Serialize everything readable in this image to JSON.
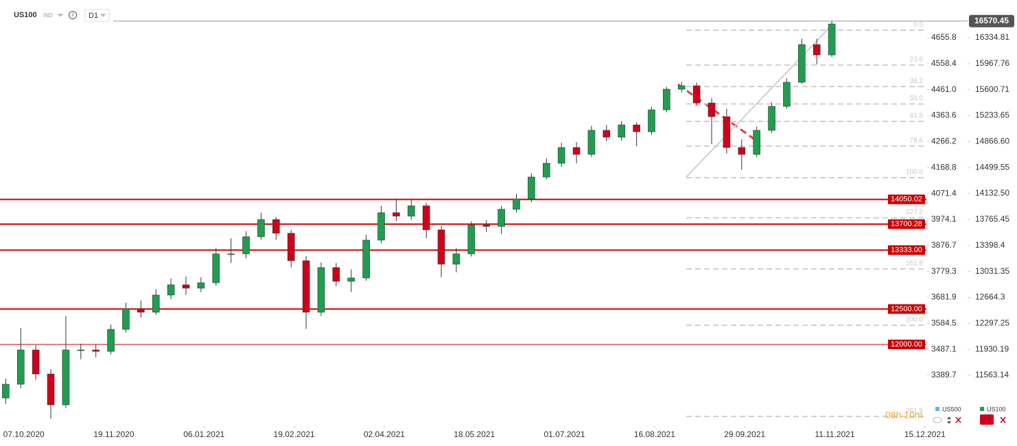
{
  "chart_data": {
    "type": "candlestick",
    "symbol": "US100",
    "market": "IND",
    "interval": "D1",
    "countdown": "08h 10m",
    "last_price": {
      "value": 16570.45,
      "label": "16570.45"
    },
    "x": [
      -6,
      -1,
      4,
      9,
      14,
      19,
      24,
      29,
      34,
      39,
      44,
      49,
      54,
      59,
      64,
      69,
      74,
      79,
      84,
      89,
      94,
      99,
      104,
      109,
      114,
      119,
      124,
      129,
      134,
      139,
      144,
      149,
      154,
      159,
      164,
      169,
      174,
      179,
      184,
      189,
      194,
      199,
      204,
      209,
      214,
      219,
      224,
      229,
      234,
      239,
      244,
      249,
      254,
      259,
      264,
      269
    ],
    "series": [
      {
        "name": "US100",
        "color_up": "#1f9e50",
        "color_down": "#d0021b",
        "open": [
          11243,
          11437,
          11922,
          11582,
          11146,
          11922,
          11922,
          11902,
          12213,
          12504,
          12455,
          12698,
          12843,
          12795,
          12872,
          13280,
          13280,
          13522,
          13765,
          13571,
          13183,
          12455,
          13086,
          12892,
          12940,
          13474,
          13862,
          13813,
          13959,
          13619,
          13134,
          13280,
          13687,
          13668,
          13910,
          14056,
          14366,
          14560,
          14783,
          14686,
          15026,
          14929,
          15103,
          15006,
          15316,
          15607,
          15656,
          15413,
          15219,
          14783,
          14686,
          15026,
          15365,
          15705,
          16238,
          16092
        ],
        "high": [
          11520,
          12230,
          11990,
          11650,
          12400,
          12010,
          12000,
          12280,
          12590,
          12620,
          12780,
          12930,
          12960,
          12950,
          13360,
          13500,
          13600,
          13860,
          13800,
          13620,
          13250,
          13160,
          13150,
          13060,
          13550,
          13960,
          14060,
          14060,
          14000,
          13680,
          13360,
          13740,
          13760,
          13960,
          14130,
          14420,
          14630,
          14850,
          14860,
          15090,
          15100,
          15160,
          15140,
          15360,
          15640,
          15710,
          15700,
          15480,
          15330,
          14900,
          15080,
          15420,
          15760,
          16320,
          16320,
          16570
        ],
        "low": [
          11160,
          11380,
          11500,
          10950,
          11100,
          11790,
          11820,
          11860,
          12170,
          12380,
          12420,
          12640,
          12700,
          12740,
          12830,
          13150,
          13220,
          13480,
          13480,
          13090,
          12220,
          12400,
          12820,
          12740,
          12900,
          13430,
          13740,
          13760,
          13500,
          12950,
          13020,
          13240,
          13590,
          13560,
          13860,
          14010,
          14330,
          14510,
          14560,
          14650,
          14870,
          14880,
          14800,
          14960,
          15280,
          15560,
          15370,
          14830,
          14700,
          14470,
          14650,
          14990,
          15330,
          15680,
          15960,
          16060
        ],
        "close": [
          11437,
          11922,
          11582,
          11146,
          11922,
          11922,
          11902,
          12213,
          12504,
          12455,
          12698,
          12843,
          12795,
          12872,
          13280,
          13280,
          13522,
          13765,
          13571,
          13183,
          12455,
          13086,
          12892,
          12940,
          13474,
          13862,
          13813,
          13959,
          13619,
          13134,
          13280,
          13687,
          13668,
          13910,
          14056,
          14366,
          14560,
          14783,
          14686,
          15026,
          14929,
          15103,
          15006,
          15316,
          15607,
          15656,
          15413,
          15219,
          14783,
          14686,
          15026,
          15365,
          15705,
          16238,
          16092,
          16529
        ]
      }
    ],
    "compare": {
      "name": "US500",
      "color": "#5bb8e6"
    },
    "xlim": [
      -7,
      300.5
    ],
    "xticks": [
      {
        "value": 0,
        "label": "07.10.2020"
      },
      {
        "value": 30,
        "label": "19.11.2020"
      },
      {
        "value": 60,
        "label": "06.01.2021"
      },
      {
        "value": 90,
        "label": "19.02.2021"
      },
      {
        "value": 120,
        "label": "02.04.2021"
      },
      {
        "value": 150,
        "label": "18.05.2021"
      },
      {
        "value": 180,
        "label": "01.07.2021"
      },
      {
        "value": 210,
        "label": "16.08.2021"
      },
      {
        "value": 240,
        "label": "29.09.2021"
      },
      {
        "value": 270,
        "label": "11.11.2021"
      },
      {
        "value": 300,
        "label": "15.12.2021"
      }
    ],
    "ylim": [
      10855.1,
      16771.2
    ],
    "yticks": [
      16334.81,
      15967.76,
      15600.71,
      15233.65,
      {
        "value": 14866.6,
        "label": "14866.60"
      },
      14499.55,
      {
        "value": 14132.5,
        "label": "14132.50"
      },
      13765.45,
      13398.4,
      13031.35,
      12664.3,
      12297.25,
      11930.19,
      11563.14
    ],
    "y2lim": [
      3201.8,
      4771.6
    ],
    "y2ticks": [
      4655.8,
      4558.4,
      {
        "value": 4461,
        "label": "4461.0"
      },
      4363.6,
      4266.2,
      4168.8,
      4071.4,
      3974.1,
      3876.7,
      3779.3,
      3681.9,
      3584.5,
      3487.1,
      3389.7
    ],
    "levels": [
      14050.02,
      13700.28,
      {
        "value": 13333,
        "label": "13333.00"
      },
      {
        "value": 12500,
        "label": "12500.00"
      },
      {
        "value": 12000,
        "label": "12000.00"
      }
    ],
    "level_color": "#cc0000",
    "fib": {
      "high": 16441,
      "low": 14356,
      "color": "#cfcfcf",
      "levels": [
        {
          "value": 0,
          "label": "0.0"
        },
        23.6,
        38.2,
        {
          "value": 50,
          "label": "50.0"
        },
        61.8,
        78.6,
        {
          "value": 100,
          "label": "100.0"
        },
        127.2,
        161.8,
        {
          "value": 200,
          "label": "200.0"
        },
        261.8
      ]
    }
  }
}
